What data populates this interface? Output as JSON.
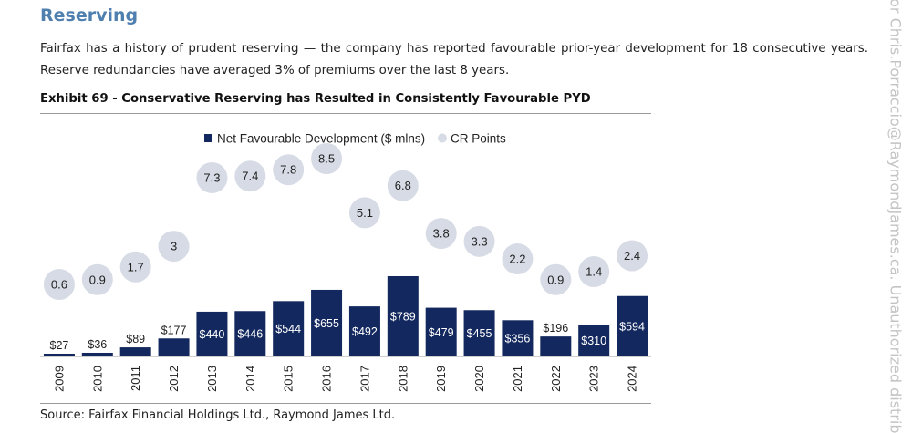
{
  "section": {
    "title": "Reserving",
    "paragraph": "Fairfax has a history of prudent reserving — the company has reported favourable prior-year development for 18 consecutive years. Reserve redundancies have averaged 3% of premiums over the last 8 years."
  },
  "exhibit": {
    "title": "Exhibit 69 - Conservative Reserving has Resulted in Consistently Favourable PYD",
    "source": "Source: Fairfax Financial Holdings Ltd., Raymond James Ltd."
  },
  "watermark": "for Chris.Porraccio@RaymondJames.ca. Unauthorized distrib",
  "chart_data": {
    "type": "bar",
    "categories": [
      "2009",
      "2010",
      "2011",
      "2012",
      "2013",
      "2014",
      "2015",
      "2016",
      "2017",
      "2018",
      "2019",
      "2020",
      "2021",
      "2022",
      "2023",
      "2024"
    ],
    "series": [
      {
        "name": "Net Favourable Development ($ mlns)",
        "values": [
          27,
          36,
          89,
          177,
          440,
          446,
          544,
          655,
          492,
          789,
          479,
          455,
          356,
          196,
          310,
          594
        ],
        "labels": [
          "$27",
          "$36",
          "$89",
          "$177",
          "$440",
          "$446",
          "$544",
          "$655",
          "$492",
          "$789",
          "$479",
          "$455",
          "$356",
          "$196",
          "$310",
          "$594"
        ],
        "color": "#13285e"
      },
      {
        "name": "CR Points",
        "values": [
          0.6,
          0.9,
          1.7,
          3,
          7.3,
          7.4,
          7.8,
          8.5,
          5.1,
          6.8,
          3.8,
          3.3,
          2.2,
          0.9,
          1.4,
          2.4
        ],
        "labels": [
          "0.6",
          "0.9",
          "1.7",
          "3",
          "7.3",
          "7.4",
          "7.8",
          "8.5",
          "5.1",
          "6.8",
          "3.8",
          "3.3",
          "2.2",
          "0.9",
          "1.4",
          "2.4"
        ],
        "color": "#d6dbe5"
      }
    ],
    "legend_position": "top-center",
    "grid": false
  }
}
